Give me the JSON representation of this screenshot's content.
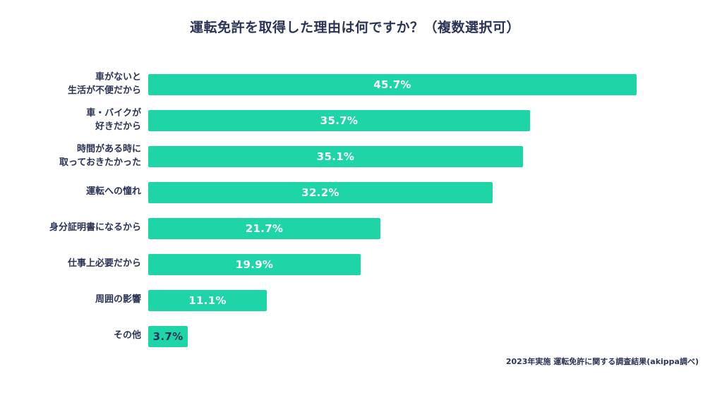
{
  "title": "運転免許を取得した理由は何ですか？（複数選択可）",
  "footer": "2023年実施 運転免許に関する調査結果(akippa調べ)",
  "colors": {
    "bar": "#1dd5a6",
    "text": "#2b3356",
    "value_on_bar": "#ffffff",
    "background": "#ffffff"
  },
  "chart_data": {
    "type": "bar",
    "orientation": "horizontal",
    "title": "運転免許を取得した理由は何ですか？（複数選択可）",
    "categories": [
      "車がないと生活が不便だから",
      "車・バイクが好きだから",
      "時間がある時に取っておきたかった",
      "運転への憧れ",
      "身分証明書になるから",
      "仕事上必要だから",
      "周囲の影響",
      "その他"
    ],
    "category_lines": [
      [
        "車がないと",
        "生活が不便だから"
      ],
      [
        "車・バイクが",
        "好きだから"
      ],
      [
        "時間がある時に",
        "取っておきたかった"
      ],
      [
        "運転への憧れ"
      ],
      [
        "身分証明書になるから"
      ],
      [
        "仕事上必要だから"
      ],
      [
        "周囲の影響"
      ],
      [
        "その他"
      ]
    ],
    "values": [
      45.7,
      35.7,
      35.1,
      32.2,
      21.7,
      19.9,
      11.1,
      3.7
    ],
    "value_labels": [
      "45.7%",
      "35.7%",
      "35.1%",
      "32.2%",
      "21.7%",
      "19.9%",
      "11.1%",
      "3.7%"
    ],
    "value_label_colors": [
      "#ffffff",
      "#ffffff",
      "#ffffff",
      "#ffffff",
      "#ffffff",
      "#ffffff",
      "#ffffff",
      "#2b3356"
    ],
    "bar_color": "#1dd5a6",
    "xlabel": "",
    "ylabel": "",
    "xlim": [
      0,
      50
    ],
    "grid": false,
    "legend": false,
    "source_note": "2023年実施 運転免許に関する調査結果(akippa調べ)"
  }
}
